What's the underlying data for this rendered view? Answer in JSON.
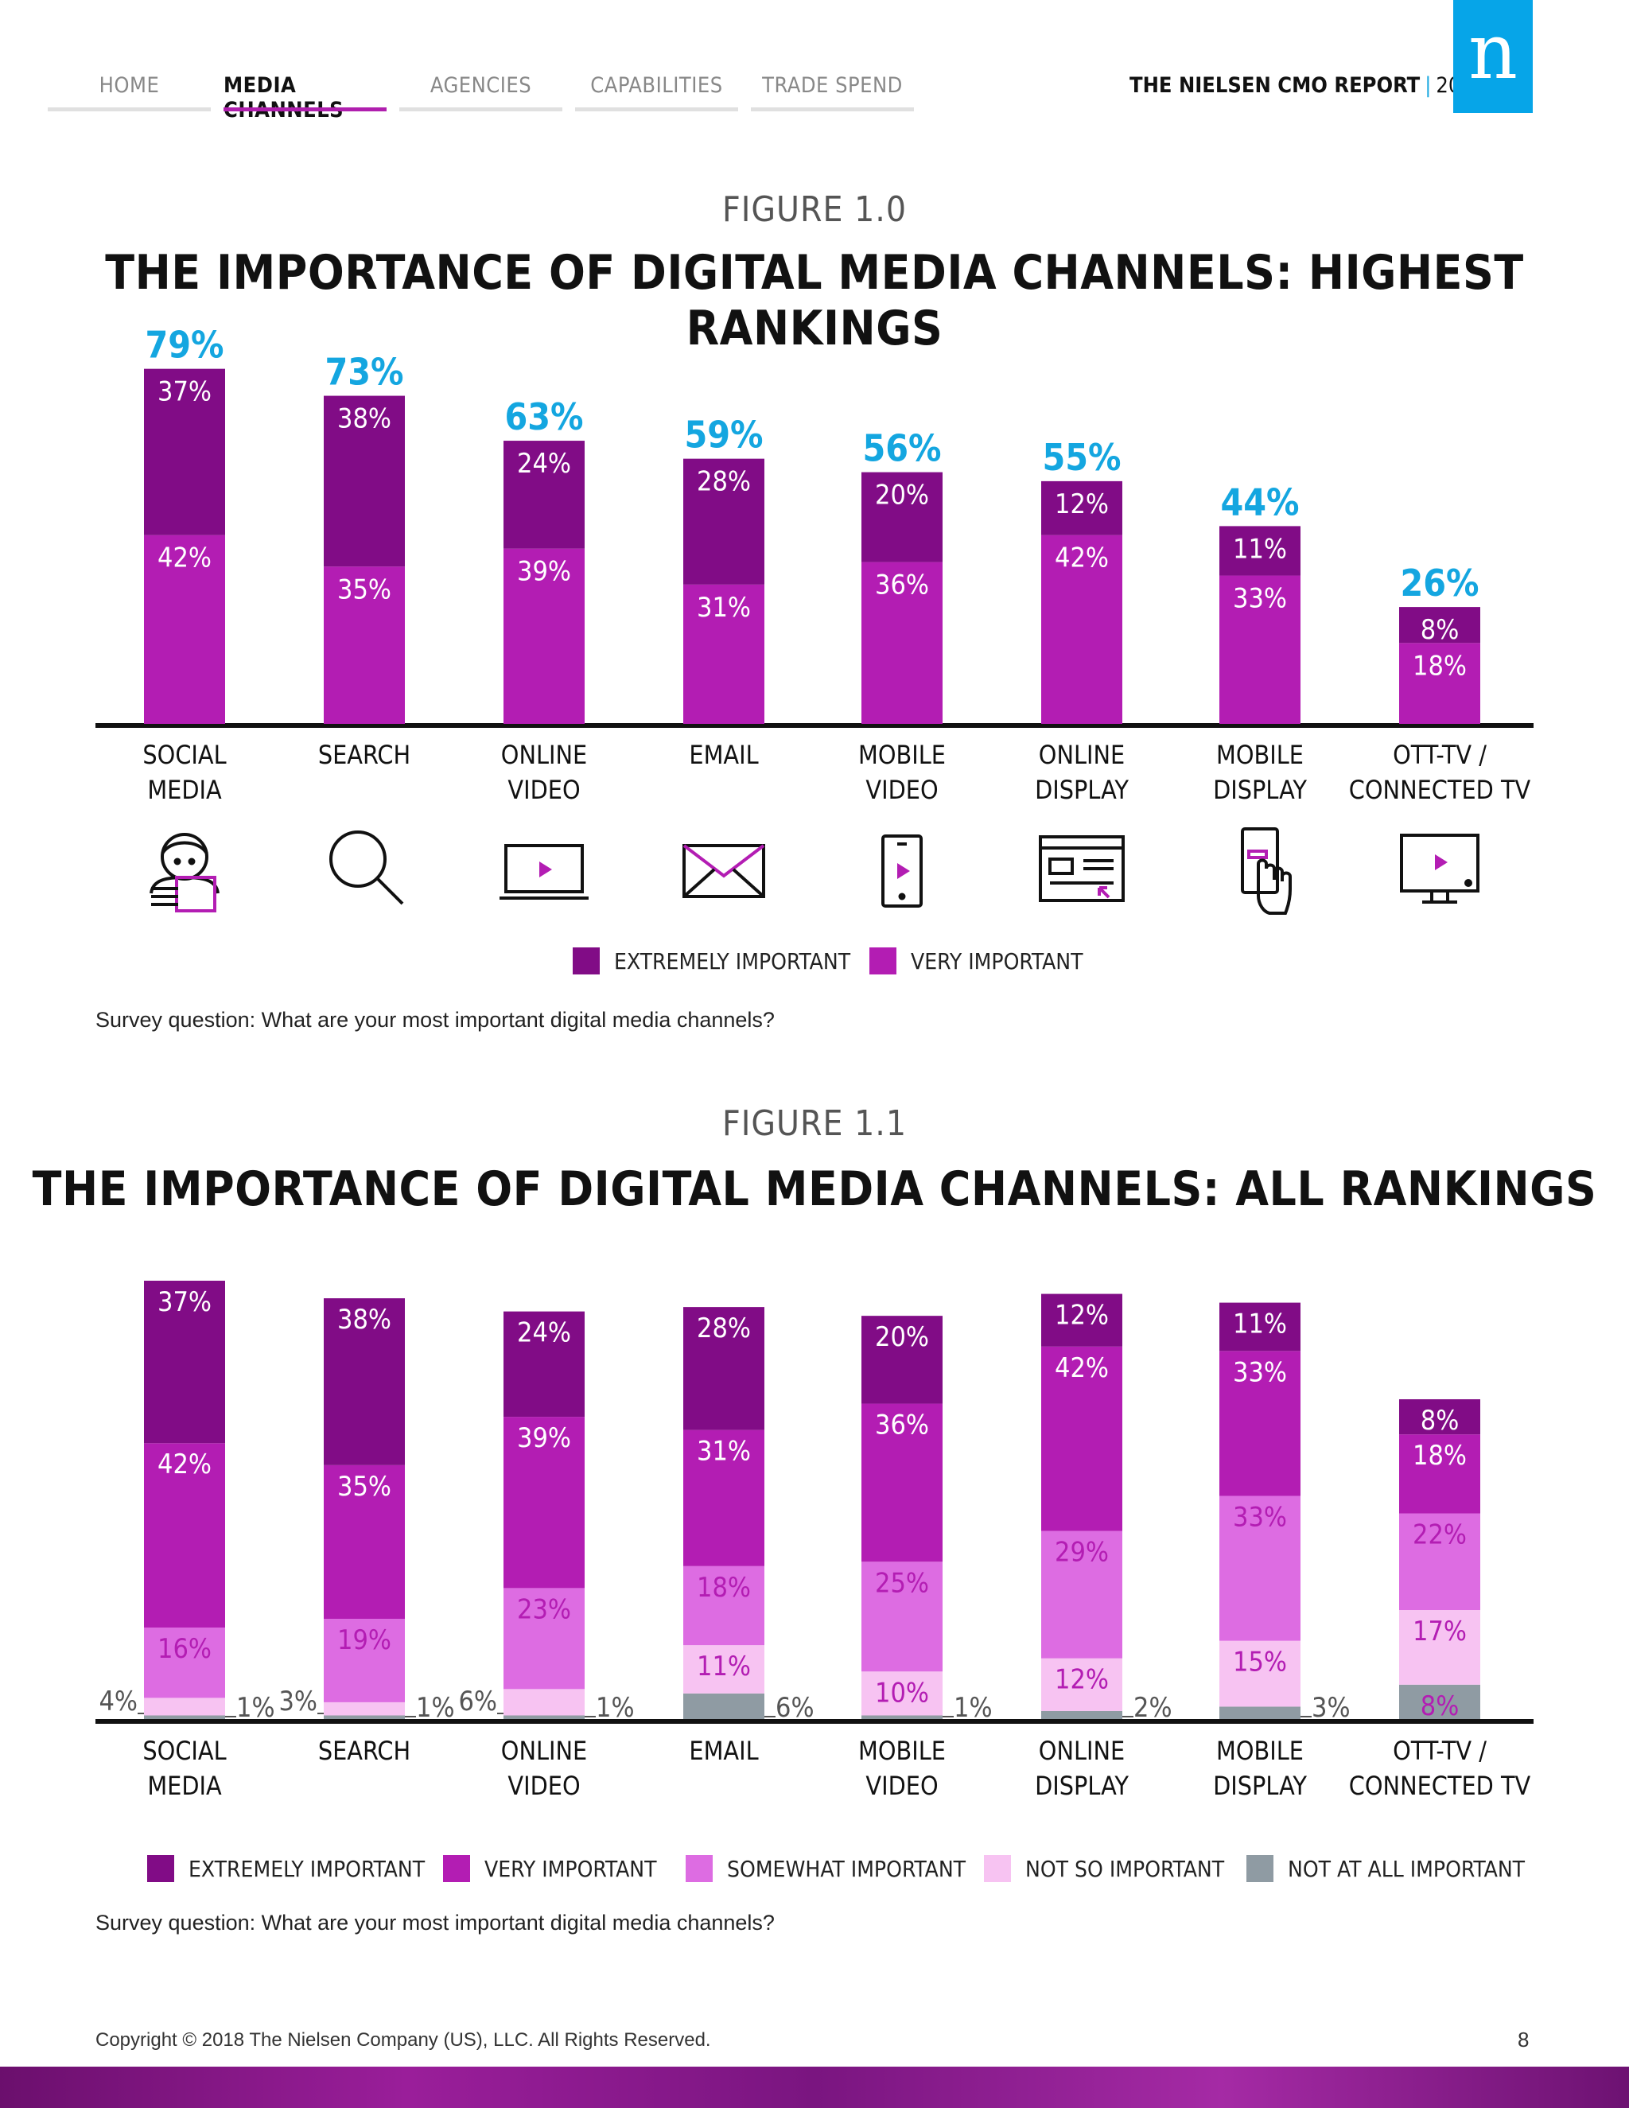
{
  "nav": {
    "tabs": [
      {
        "label": "HOME",
        "active": false
      },
      {
        "label": "MEDIA CHANNELS",
        "active": true
      },
      {
        "label": "AGENCIES",
        "active": false
      },
      {
        "label": "CAPABILITIES",
        "active": false
      },
      {
        "label": "TRADE SPEND",
        "active": false
      }
    ]
  },
  "header": {
    "report_title": "THE NIELSEN CMO REPORT",
    "separator": "|",
    "year": "2018",
    "logo_letter": "n"
  },
  "figure1": {
    "label": "FIGURE 1.0",
    "title": "THE IMPORTANCE OF DIGITAL MEDIA CHANNELS: HIGHEST RANKINGS",
    "survey": "Survey question: What are your most important digital media channels?"
  },
  "figure2": {
    "label": "FIGURE 1.1",
    "title": "THE IMPORTANCE OF DIGITAL MEDIA CHANNELS: ALL RANKINGS",
    "survey": "Survey question: What are your most important digital media channels?"
  },
  "footer": {
    "copyright": "Copyright © 2018 The Nielsen Company (US), LLC. All Rights Reserved.",
    "page_number": "8"
  },
  "colors": {
    "extremely": "#810c86",
    "very": "#b31db3",
    "somewhat": "#dd6ce2",
    "not_so": "#f7c3f2",
    "not_at_all": "#8f9ba3",
    "total_label": "#14a6e0"
  },
  "icons": [
    "person-tablet-icon",
    "magnifier-icon",
    "video-monitor-icon",
    "envelope-icon",
    "mobile-video-icon",
    "browser-display-icon",
    "hand-phone-icon",
    "connected-tv-icon"
  ],
  "chart_data": [
    {
      "type": "bar",
      "stacked": true,
      "categories": [
        "SOCIAL MEDIA",
        "SEARCH",
        "ONLINE VIDEO",
        "EMAIL",
        "MOBILE VIDEO",
        "ONLINE DISPLAY",
        "MOBILE DISPLAY",
        "OTT-TV / CONNECTED TV"
      ],
      "series": [
        {
          "name": "EXTREMELY IMPORTANT",
          "values": [
            37,
            38,
            24,
            28,
            20,
            12,
            11,
            8
          ]
        },
        {
          "name": "VERY IMPORTANT",
          "values": [
            42,
            35,
            39,
            31,
            36,
            42,
            33,
            18
          ]
        }
      ],
      "totals": [
        79,
        73,
        63,
        59,
        56,
        55,
        44,
        26
      ],
      "legend": "bottom"
    },
    {
      "type": "bar",
      "stacked": true,
      "categories": [
        "SOCIAL MEDIA",
        "SEARCH",
        "ONLINE VIDEO",
        "EMAIL",
        "MOBILE VIDEO",
        "ONLINE DISPLAY",
        "MOBILE DISPLAY",
        "OTT-TV / CONNECTED TV"
      ],
      "series": [
        {
          "name": "EXTREMELY IMPORTANT",
          "values": [
            37,
            38,
            24,
            28,
            20,
            12,
            11,
            8
          ]
        },
        {
          "name": "VERY IMPORTANT",
          "values": [
            42,
            35,
            39,
            31,
            36,
            42,
            33,
            18
          ]
        },
        {
          "name": "SOMEWHAT IMPORTANT",
          "values": [
            16,
            19,
            23,
            18,
            25,
            29,
            33,
            22
          ]
        },
        {
          "name": "NOT SO IMPORTANT",
          "values": [
            4,
            3,
            6,
            11,
            10,
            12,
            15,
            17
          ]
        },
        {
          "name": "NOT AT ALL IMPORTANT",
          "values": [
            1,
            1,
            1,
            6,
            1,
            2,
            3,
            8
          ]
        }
      ],
      "legend": "bottom"
    }
  ]
}
